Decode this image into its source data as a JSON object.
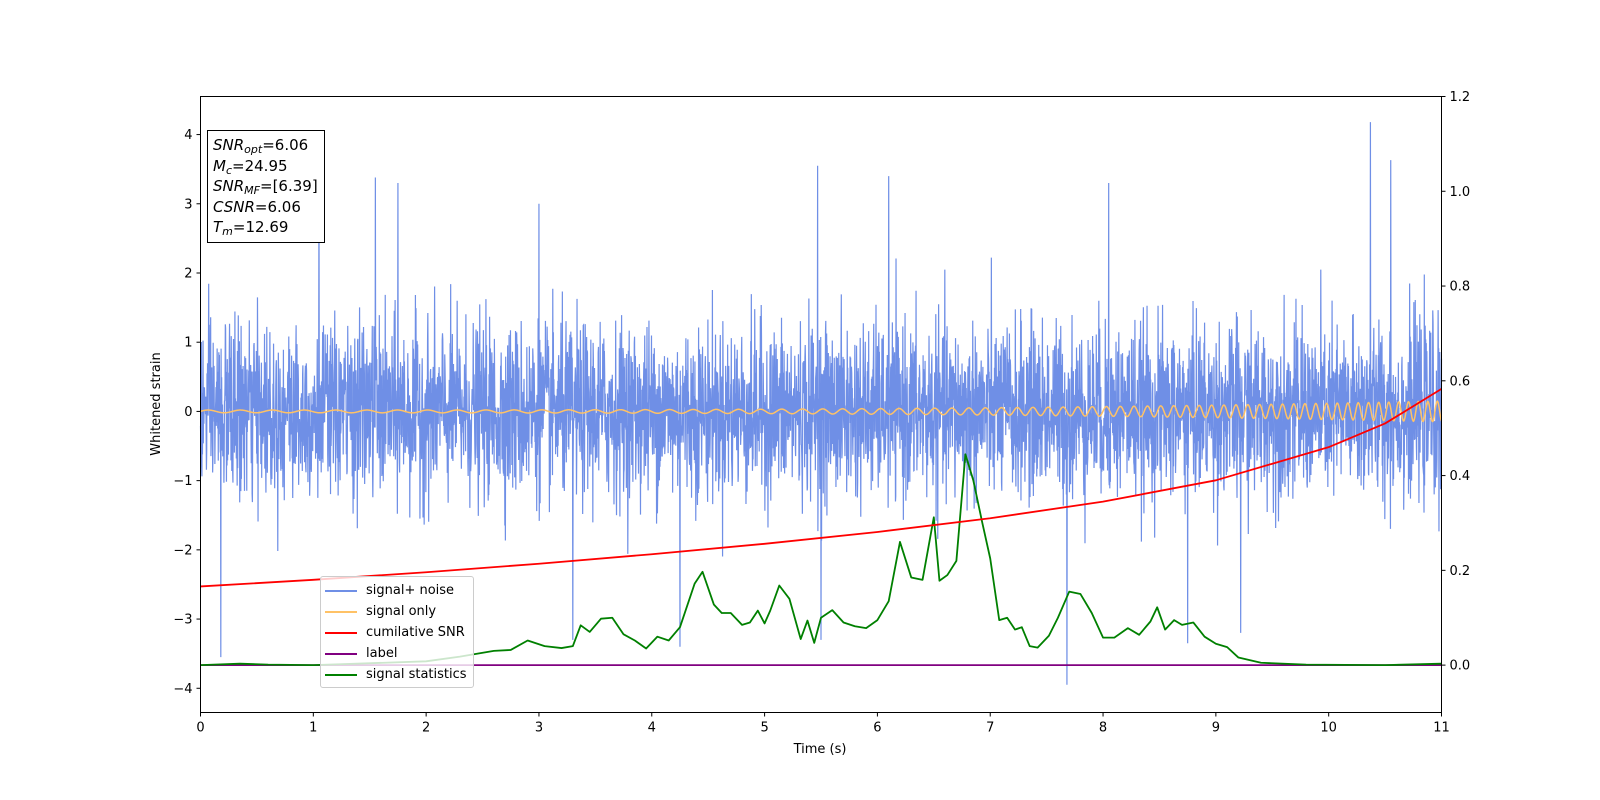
{
  "chart_data": {
    "type": "line",
    "xlabel": "Time (s)",
    "ylabel": "Whitened strain",
    "xlim": [
      0,
      11
    ],
    "ylim_left": [
      -4.35,
      4.55
    ],
    "ylim_right": [
      -0.1,
      1.2
    ],
    "x_ticks": [
      "0",
      "1",
      "2",
      "3",
      "4",
      "5",
      "6",
      "7",
      "8",
      "9",
      "10",
      "11"
    ],
    "y_ticks_left": [
      "−4",
      "−3",
      "−2",
      "−1",
      "0",
      "1",
      "2",
      "3",
      "4"
    ],
    "y_ticks_right": [
      "0.0",
      "0.2",
      "0.4",
      "0.6",
      "0.8",
      "1.0",
      "1.2"
    ],
    "grid": false,
    "legend_position": "lower-left",
    "info_box": {
      "snr_opt": {
        "base": "SNR",
        "sub": "opt",
        "value": "=6.06"
      },
      "mc": {
        "base": "M",
        "sub": "c",
        "value": "=24.95"
      },
      "snr_mf": {
        "base": "SNR",
        "sub": "MF",
        "value": "=[6.39]"
      },
      "csnr": {
        "base": "CSNR",
        "value": "=6.06"
      },
      "tm": {
        "base": "T",
        "sub": "m",
        "value": "=12.69"
      }
    },
    "series": [
      {
        "name": "signal+ noise",
        "axis": "left",
        "color": "#6f8fe6",
        "description_values": {
          "kind": "noise",
          "std": 0.62,
          "typical_max": 2.6,
          "peak_max": 4.18,
          "peak_min": -3.95,
          "spikes": [
            [
              1.55,
              3.38
            ],
            [
              1.75,
              3.3
            ],
            [
              3.0,
              3.0
            ],
            [
              4.25,
              -3.4
            ],
            [
              5.47,
              3.55
            ],
            [
              5.5,
              -3.3
            ],
            [
              6.1,
              3.4
            ],
            [
              7.68,
              -3.95
            ],
            [
              10.37,
              4.18
            ],
            [
              10.55,
              3.63
            ],
            [
              9.22,
              -3.2
            ],
            [
              0.18,
              -3.55
            ],
            [
              1.05,
              3.3
            ],
            [
              8.05,
              3.3
            ],
            [
              3.3,
              -3.3
            ],
            [
              8.75,
              -3.35
            ]
          ]
        }
      },
      {
        "name": "signal only",
        "axis": "left",
        "color": "#ffc266",
        "description_values": {
          "kind": "chirp",
          "amp_start": 0.02,
          "amp_end": 0.15,
          "freq_start": 3.5,
          "freq_end": 12.0
        }
      },
      {
        "name": "cumilative SNR",
        "axis": "right",
        "color": "#ff0000",
        "x": [
          0,
          1,
          2,
          3,
          4,
          5,
          6,
          7,
          8,
          9,
          10,
          10.5,
          11
        ],
        "y": [
          0.166,
          0.18,
          0.196,
          0.214,
          0.234,
          0.256,
          0.281,
          0.31,
          0.345,
          0.39,
          0.46,
          0.51,
          0.583
        ]
      },
      {
        "name": "label",
        "axis": "right",
        "color": "#800080",
        "x": [
          0,
          11
        ],
        "y": [
          0.0,
          0.0
        ]
      },
      {
        "name": "signal statistics",
        "axis": "right",
        "color": "#008000",
        "x": [
          0,
          0.35,
          0.6,
          1.0,
          2.0,
          2.3,
          2.6,
          2.75,
          2.9,
          3.05,
          3.2,
          3.3,
          3.37,
          3.45,
          3.55,
          3.65,
          3.75,
          3.85,
          3.95,
          4.05,
          4.15,
          4.25,
          4.38,
          4.45,
          4.55,
          4.62,
          4.7,
          4.8,
          4.87,
          4.94,
          5.0,
          5.05,
          5.13,
          5.22,
          5.32,
          5.38,
          5.44,
          5.5,
          5.6,
          5.7,
          5.8,
          5.9,
          6.0,
          6.1,
          6.2,
          6.3,
          6.4,
          6.5,
          6.55,
          6.62,
          6.7,
          6.78,
          6.85,
          6.93,
          7.0,
          7.08,
          7.15,
          7.22,
          7.28,
          7.35,
          7.42,
          7.52,
          7.6,
          7.7,
          7.8,
          7.9,
          8.0,
          8.1,
          8.22,
          8.32,
          8.42,
          8.48,
          8.55,
          8.63,
          8.7,
          8.8,
          8.9,
          9.0,
          9.1,
          9.2,
          9.4,
          9.8,
          10.5,
          11.0
        ],
        "y": [
          0.0,
          0.003,
          0.001,
          0.0,
          0.008,
          0.018,
          0.03,
          0.032,
          0.052,
          0.04,
          0.036,
          0.04,
          0.084,
          0.07,
          0.098,
          0.1,
          0.065,
          0.052,
          0.035,
          0.06,
          0.052,
          0.08,
          0.172,
          0.197,
          0.128,
          0.11,
          0.11,
          0.085,
          0.09,
          0.115,
          0.088,
          0.115,
          0.168,
          0.14,
          0.055,
          0.094,
          0.047,
          0.1,
          0.116,
          0.09,
          0.082,
          0.078,
          0.095,
          0.135,
          0.26,
          0.185,
          0.18,
          0.312,
          0.178,
          0.19,
          0.22,
          0.445,
          0.39,
          0.3,
          0.225,
          0.095,
          0.1,
          0.075,
          0.08,
          0.04,
          0.037,
          0.062,
          0.1,
          0.155,
          0.15,
          0.11,
          0.058,
          0.058,
          0.078,
          0.064,
          0.092,
          0.122,
          0.075,
          0.095,
          0.085,
          0.09,
          0.06,
          0.045,
          0.038,
          0.016,
          0.005,
          0.001,
          0.0,
          0.003
        ]
      }
    ]
  }
}
